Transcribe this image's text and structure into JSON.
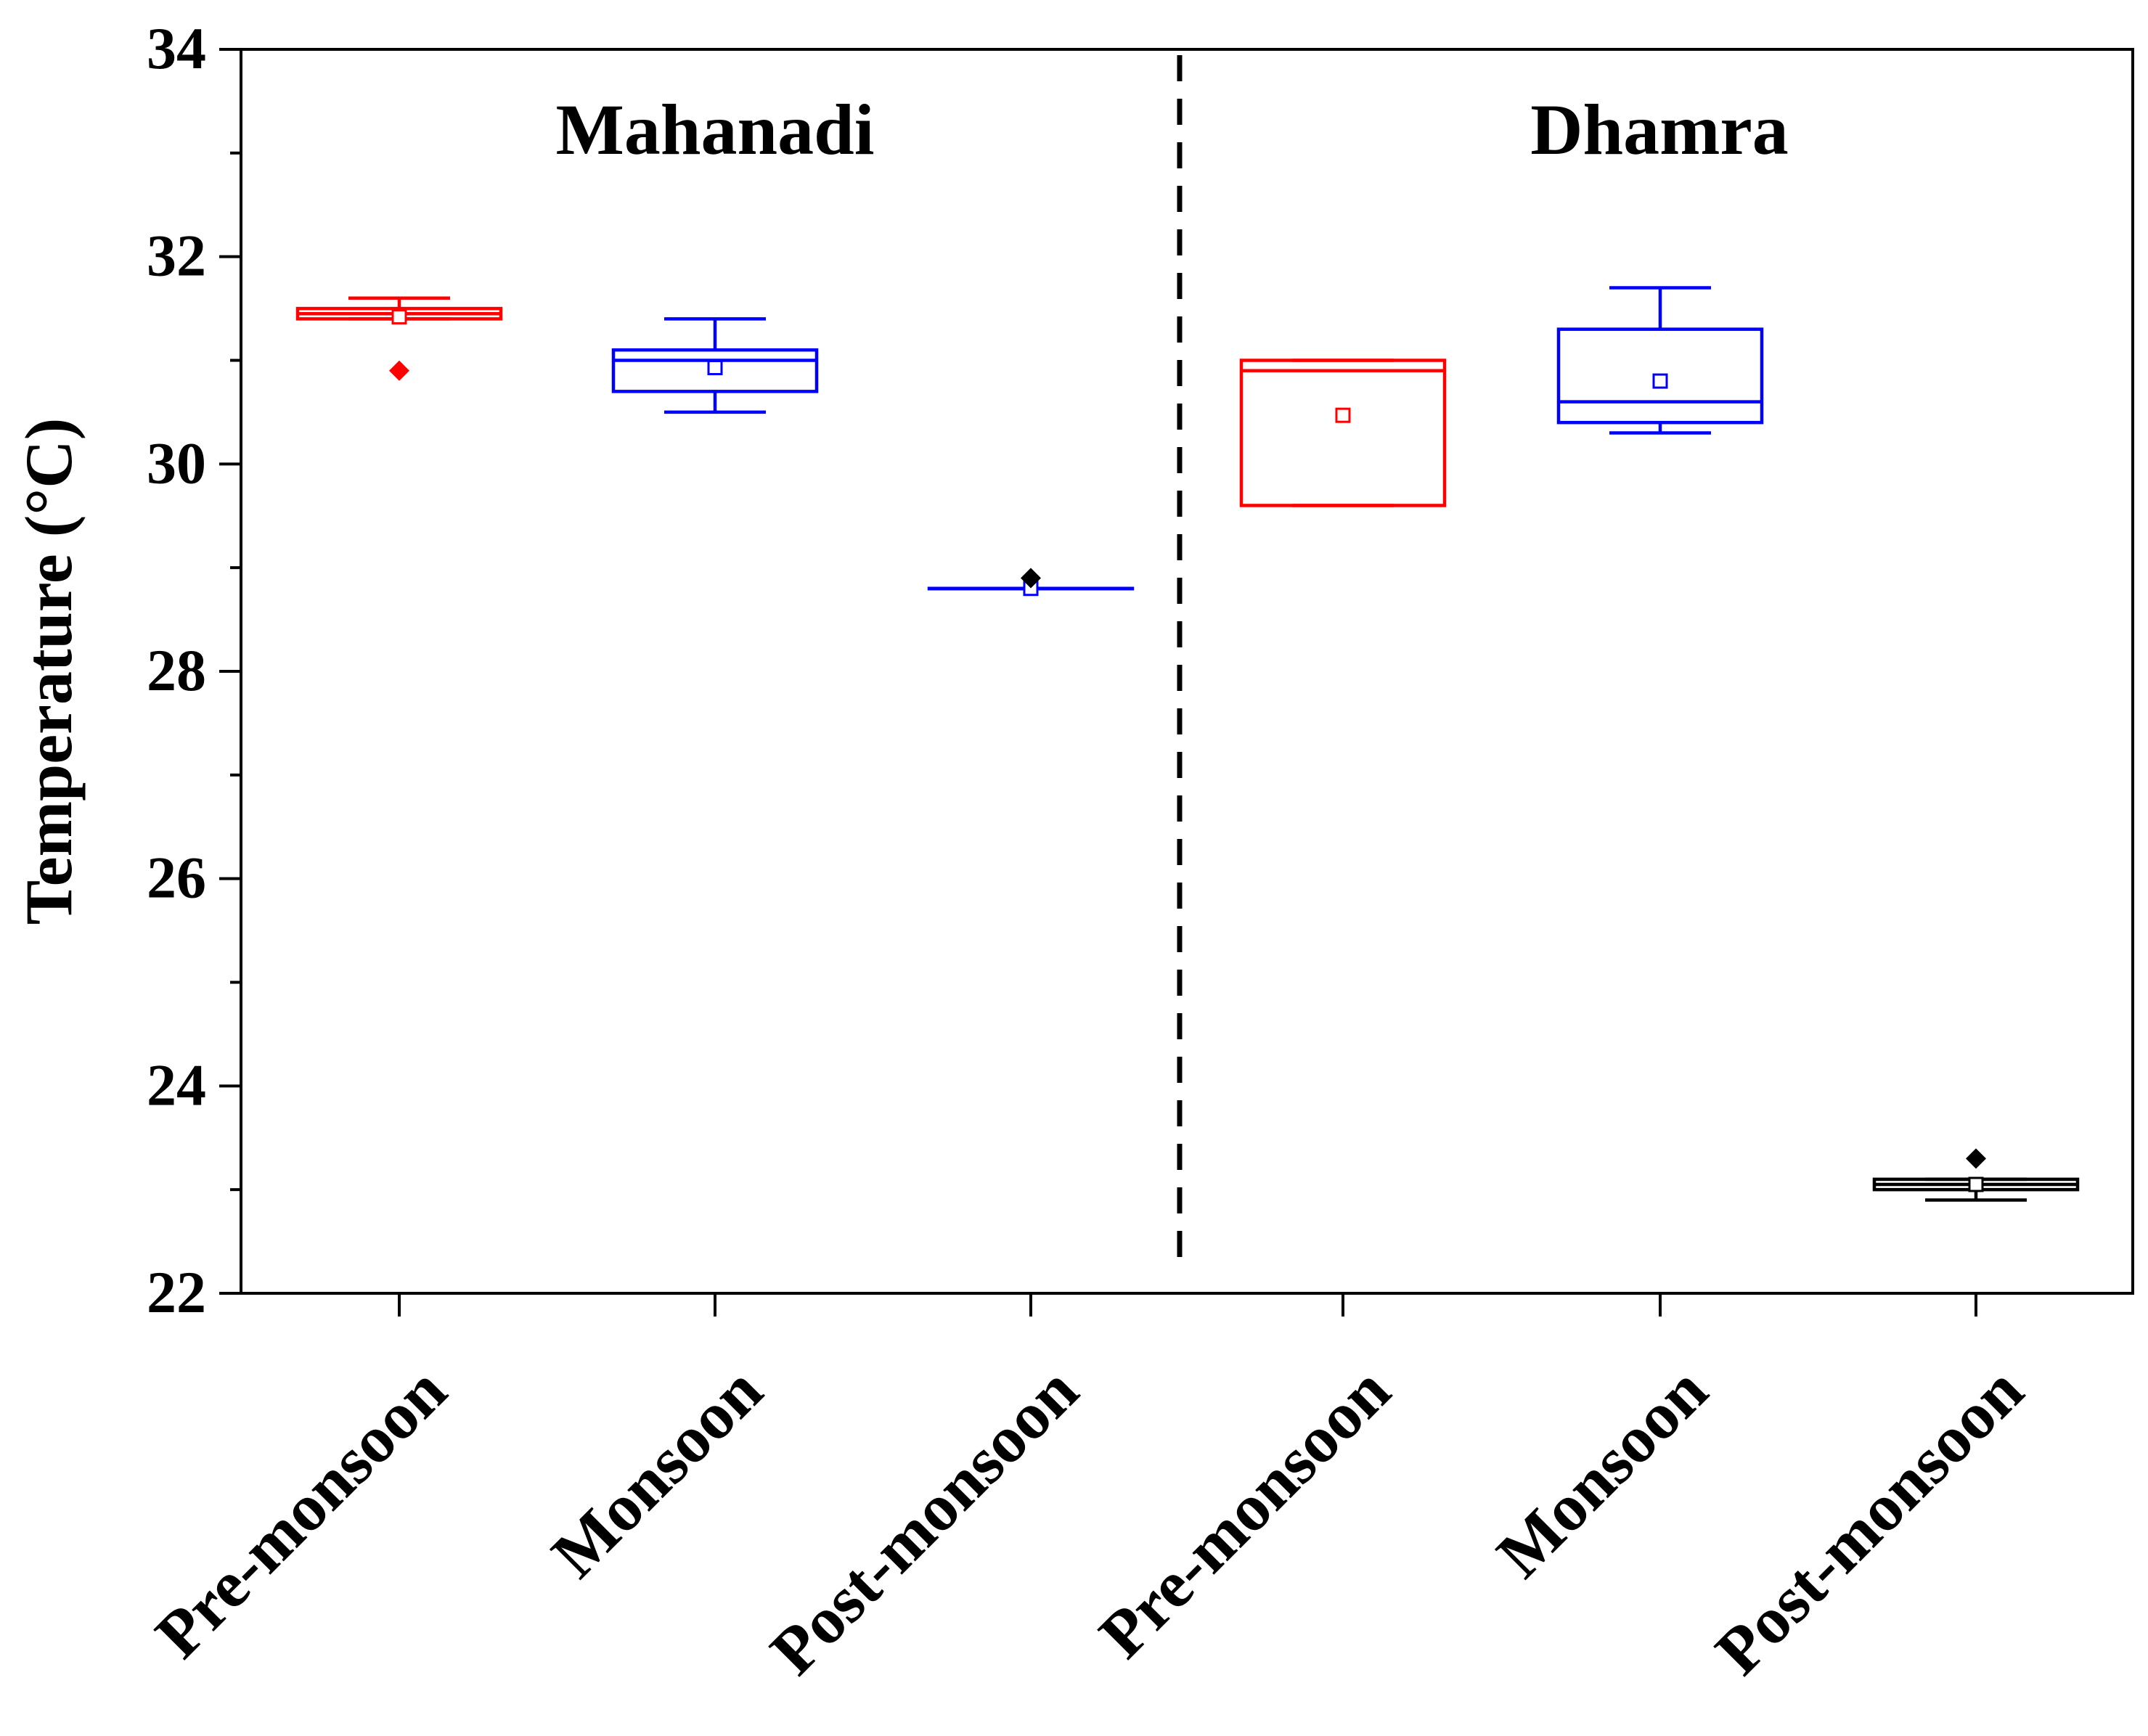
{
  "chart_data": {
    "type": "box",
    "ylabel": "Temperature (°C)",
    "xlabel": "",
    "ylim": [
      22,
      34
    ],
    "yticks": [
      22,
      24,
      26,
      28,
      30,
      32,
      34
    ],
    "groups": [
      {
        "name": "Mahanadi",
        "categories": [
          0,
          1,
          2
        ]
      },
      {
        "name": "Dhamra",
        "categories": [
          3,
          4,
          5
        ]
      }
    ],
    "categories": [
      "Pre-monsoon",
      "Monsoon",
      "Post-monsoon",
      "Pre-monsoon",
      "Monsoon",
      "Post-monsoon"
    ],
    "boxes": [
      {
        "category": "Pre-monsoon",
        "group": "Mahanadi",
        "color": "#ff0000",
        "whisker_low": 31.4,
        "q1": 31.4,
        "median": 31.45,
        "q3": 31.5,
        "whisker_high": 31.6,
        "mean": 31.42,
        "outliers": [
          30.9
        ]
      },
      {
        "category": "Monsoon",
        "group": "Mahanadi",
        "color": "#0000ff",
        "whisker_low": 30.5,
        "q1": 30.7,
        "median": 31.0,
        "q3": 31.1,
        "whisker_high": 31.4,
        "mean": 30.93,
        "outliers": []
      },
      {
        "category": "Post-monsoon",
        "group": "Mahanadi",
        "color": "#0000ff",
        "whisker_low": 28.8,
        "q1": 28.8,
        "median": 28.8,
        "q3": 28.8,
        "whisker_high": 28.8,
        "mean": 28.8,
        "outliers": [
          28.9
        ]
      },
      {
        "category": "Pre-monsoon",
        "group": "Dhamra",
        "color": "#ff0000",
        "whisker_low": 29.6,
        "q1": 29.6,
        "median": 30.9,
        "q3": 31.0,
        "whisker_high": 31.0,
        "mean": 30.47,
        "outliers": []
      },
      {
        "category": "Monsoon",
        "group": "Dhamra",
        "color": "#0000ff",
        "whisker_low": 30.3,
        "q1": 30.4,
        "median": 30.6,
        "q3": 31.3,
        "whisker_high": 31.7,
        "mean": 30.8,
        "outliers": []
      },
      {
        "category": "Post-monsoon",
        "group": "Dhamra",
        "color": "#000000",
        "whisker_low": 22.9,
        "q1": 23.0,
        "median": 23.05,
        "q3": 23.1,
        "whisker_high": 23.1,
        "mean": 23.05,
        "outliers": [
          23.3
        ]
      }
    ]
  }
}
